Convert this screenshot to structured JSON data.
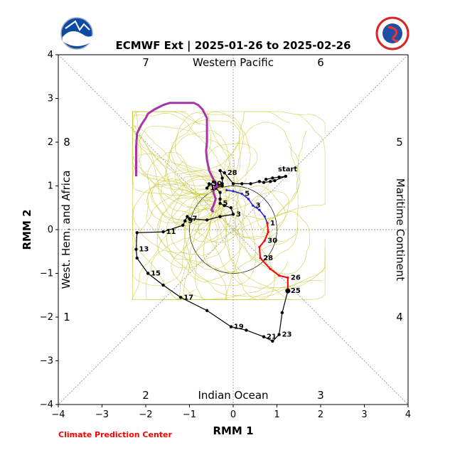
{
  "chart_data": {
    "type": "line",
    "title": "ECMWF Ext | 2025-01-26 to 2025-02-26",
    "xlabel": "RMM 1",
    "ylabel": "RMM 2",
    "xlim": [
      -4,
      4
    ],
    "ylim": [
      -4,
      4
    ],
    "xticks": [
      "−4",
      "−3",
      "−2",
      "−1",
      "0",
      "1",
      "2",
      "3",
      "4"
    ],
    "yticks": [
      "−4",
      "−3",
      "−2",
      "−1",
      "0",
      "1",
      "2",
      "3",
      "4"
    ],
    "grid": "diagonal phase dividers and axis lines",
    "phase_numbers": [
      "1",
      "2",
      "3",
      "4",
      "5",
      "6",
      "7",
      "8"
    ],
    "regions": {
      "top": "Western Pacific",
      "bottom": "Indian Ocean",
      "left": "West. Hem. and Africa",
      "right": "Maritime Continent"
    },
    "start_label": "start",
    "credit": "Climate Prediction Center",
    "colors": {
      "observed": "#000000",
      "ensemble": "#c8c832",
      "ensemble_mean_week1": "#1f1fdc",
      "ensemble_mean_week2": "#ff0000",
      "ensemble_mean_week3": "#aa33aa",
      "credit": "#ff0000"
    },
    "series": [
      {
        "points": [
          [
            0.75,
            1.15
          ],
          [
            0.9,
            1.18
          ],
          [
            1.05,
            1.2
          ],
          [
            1.2,
            1.22
          ],
          [
            0.95,
            1.12
          ],
          [
            0.85,
            1.1
          ],
          [
            0.7,
            1.08
          ],
          [
            0.6,
            1.1
          ],
          [
            0.4,
            1.05
          ],
          [
            0.2,
            1.05
          ],
          [
            0.0,
            1.05
          ],
          [
            -0.2,
            1.3
          ],
          [
            -0.3,
            1.35
          ],
          [
            -0.25,
            1.18
          ],
          [
            -0.25,
            1.05
          ],
          [
            -0.4,
            1.0
          ],
          [
            -0.55,
            1.05
          ],
          [
            -0.6,
            0.95
          ],
          [
            -0.45,
            1.1
          ],
          [
            -0.25,
            1.0
          ],
          [
            -0.4,
            0.95
          ],
          [
            -0.3,
            0.85
          ],
          [
            -0.3,
            0.7
          ],
          [
            -0.3,
            0.6
          ],
          [
            -0.2,
            0.55
          ],
          [
            -0.05,
            0.5
          ],
          [
            0.0,
            0.35
          ],
          [
            -0.3,
            0.3
          ],
          [
            -0.6,
            0.22
          ],
          [
            -1.0,
            0.25
          ],
          [
            -1.05,
            0.3
          ],
          [
            -1.1,
            0.2
          ],
          [
            -1.15,
            0.1
          ],
          [
            -1.6,
            -0.05
          ],
          [
            -2.2,
            -0.07
          ],
          [
            -2.22,
            -0.45
          ],
          [
            -2.2,
            -0.65
          ],
          [
            -1.95,
            -1.0
          ],
          [
            -1.6,
            -1.27
          ],
          [
            -1.2,
            -1.55
          ],
          [
            -0.6,
            -1.85
          ],
          [
            -0.05,
            -2.22
          ],
          [
            0.3,
            -2.3
          ],
          [
            0.7,
            -2.45
          ],
          [
            0.9,
            -2.55
          ],
          [
            1.05,
            -2.4
          ],
          [
            1.12,
            -1.9
          ],
          [
            1.25,
            -1.4
          ]
        ],
        "labels": [
          {
            "t": "28",
            "i": 11
          },
          {
            "t": "30",
            "i": 16
          },
          {
            "t": "1",
            "i": 17
          },
          {
            "t": "3",
            "i": 26
          },
          {
            "t": "5",
            "i": 23
          },
          {
            "t": "7",
            "i": 29
          },
          {
            "t": "9",
            "i": 31
          },
          {
            "t": "11",
            "i": 33
          },
          {
            "t": "13",
            "i": 35
          },
          {
            "t": "15",
            "i": 37
          },
          {
            "t": "17",
            "i": 39
          },
          {
            "t": "19",
            "i": 41
          },
          {
            "t": "21",
            "i": 43
          },
          {
            "t": "23",
            "i": 45
          },
          {
            "t": "25",
            "i": 47
          }
        ]
      },
      {
        "points": [
          [
            -0.15,
            0.9
          ],
          [
            0.0,
            0.88
          ],
          [
            0.2,
            0.82
          ],
          [
            0.35,
            0.7
          ],
          [
            0.45,
            0.55
          ],
          [
            0.6,
            0.45
          ],
          [
            0.72,
            0.3
          ],
          [
            0.78,
            0.15
          ]
        ],
        "labels": [
          {
            "t": "5",
            "i": 2
          },
          {
            "t": "3",
            "i": 4
          },
          {
            "t": "1",
            "i": 7
          }
        ]
      },
      {
        "points": [
          [
            0.78,
            0.15
          ],
          [
            0.8,
            -0.05
          ],
          [
            0.72,
            -0.25
          ],
          [
            0.6,
            -0.4
          ],
          [
            0.62,
            -0.65
          ],
          [
            0.85,
            -0.9
          ],
          [
            1.05,
            -1.05
          ],
          [
            1.25,
            -1.1
          ],
          [
            1.25,
            -1.4
          ]
        ],
        "labels": [
          {
            "t": "30",
            "i": 2
          },
          {
            "t": "28",
            "i": 4
          },
          {
            "t": "26",
            "i": 7
          }
        ]
      },
      {
        "points": [
          [
            -0.45,
            0.4
          ],
          [
            -0.5,
            0.45
          ],
          [
            -0.45,
            0.55
          ],
          [
            -0.4,
            0.7
          ],
          [
            -0.45,
            0.85
          ],
          [
            -0.45,
            0.95
          ],
          [
            -0.35,
            1.0
          ],
          [
            -0.45,
            1.15
          ],
          [
            -0.55,
            1.35
          ],
          [
            -0.6,
            1.6
          ],
          [
            -0.62,
            1.8
          ],
          [
            -0.6,
            2.0
          ],
          [
            -0.6,
            2.3
          ],
          [
            -0.6,
            2.55
          ],
          [
            -0.65,
            2.65
          ],
          [
            -0.7,
            2.75
          ],
          [
            -0.8,
            2.85
          ],
          [
            -0.9,
            2.9
          ],
          [
            -1.2,
            2.9
          ],
          [
            -1.45,
            2.9
          ],
          [
            -1.6,
            2.85
          ],
          [
            -1.8,
            2.75
          ],
          [
            -1.95,
            2.65
          ],
          [
            -2.0,
            2.55
          ],
          [
            -2.1,
            2.4
          ],
          [
            -2.2,
            2.2
          ],
          [
            -2.22,
            1.9
          ],
          [
            -2.22,
            1.6
          ],
          [
            -2.22,
            1.22
          ]
        ]
      }
    ],
    "ensemble": {
      "members": 50,
      "xrange": [
        -2.3,
        2.1
      ],
      "yrange": [
        -1.6,
        2.7
      ]
    }
  }
}
